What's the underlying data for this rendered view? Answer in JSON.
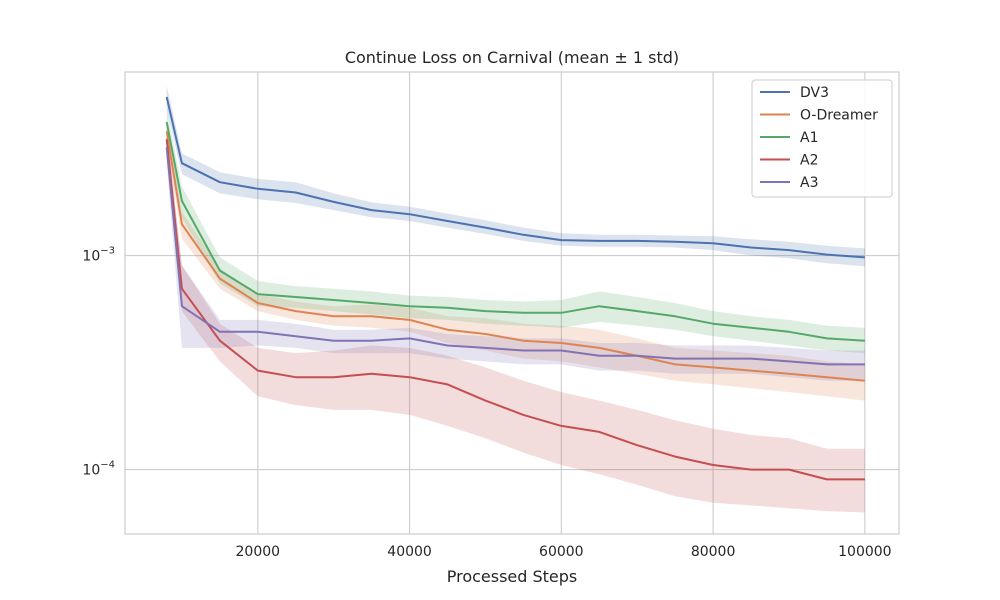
{
  "chart_data": {
    "type": "line",
    "title": "Continue Loss on Carnival (mean ± 1 std)",
    "xlabel": "Processed Steps",
    "ylabel": "",
    "xlim": [
      2500,
      104500
    ],
    "ylim": [
      5e-05,
      0.0072
    ],
    "yscale": "log",
    "grid": true,
    "legend_position": "top-right",
    "xticks": [
      20000,
      40000,
      60000,
      80000,
      100000
    ],
    "yticks": [
      {
        "value": 0.001,
        "base": "10",
        "exp": "−3"
      },
      {
        "value": 0.0001,
        "base": "10",
        "exp": "−4"
      }
    ],
    "x": [
      8000,
      10000,
      15000,
      20000,
      25000,
      30000,
      35000,
      40000,
      45000,
      50000,
      55000,
      60000,
      65000,
      70000,
      75000,
      80000,
      85000,
      90000,
      95000,
      100000
    ],
    "series": [
      {
        "name": "DV3",
        "color": "#4c72b0",
        "values": [
          0.0055,
          0.0027,
          0.0022,
          0.00205,
          0.00197,
          0.00178,
          0.00163,
          0.00156,
          0.00145,
          0.00135,
          0.00125,
          0.00118,
          0.00117,
          0.00117,
          0.00116,
          0.00114,
          0.00109,
          0.00106,
          0.00101,
          0.00098
        ],
        "lower": [
          0.0048,
          0.0024,
          0.00195,
          0.00183,
          0.00176,
          0.00163,
          0.00151,
          0.00145,
          0.00135,
          0.00126,
          0.00117,
          0.00111,
          0.0011,
          0.0011,
          0.00109,
          0.00106,
          0.001,
          0.00097,
          0.00092,
          0.00089
        ],
        "upper": [
          0.0062,
          0.003,
          0.00245,
          0.00228,
          0.0022,
          0.00195,
          0.00177,
          0.00169,
          0.00157,
          0.00146,
          0.00135,
          0.00127,
          0.00125,
          0.00125,
          0.00124,
          0.00123,
          0.00119,
          0.00116,
          0.00111,
          0.00108
        ]
      },
      {
        "name": "O-Dreamer",
        "color": "#dd8452",
        "values": [
          0.0038,
          0.0014,
          0.00078,
          0.0006,
          0.00055,
          0.00052,
          0.00052,
          0.0005,
          0.00045,
          0.00043,
          0.0004,
          0.00039,
          0.00037,
          0.00034,
          0.00031,
          0.0003,
          0.00029,
          0.00028,
          0.00027,
          0.00026
        ],
        "lower": [
          0.0033,
          0.0012,
          0.0007,
          0.00055,
          0.0005,
          0.00047,
          0.00046,
          0.00044,
          0.00039,
          0.00036,
          0.00033,
          0.00032,
          0.0003,
          0.00028,
          0.00026,
          0.00025,
          0.00024,
          0.00023,
          0.00022,
          0.00021
        ],
        "upper": [
          0.0043,
          0.0016,
          0.00087,
          0.00066,
          0.00061,
          0.00058,
          0.00059,
          0.00057,
          0.00052,
          0.00051,
          0.00048,
          0.00047,
          0.00045,
          0.00041,
          0.00037,
          0.00036,
          0.00035,
          0.00034,
          0.00032,
          0.00031
        ]
      },
      {
        "name": "A1",
        "color": "#55a868",
        "values": [
          0.0042,
          0.0018,
          0.00085,
          0.00066,
          0.00064,
          0.00062,
          0.0006,
          0.00058,
          0.00057,
          0.00055,
          0.00054,
          0.00054,
          0.00058,
          0.00055,
          0.00052,
          0.00048,
          0.00046,
          0.00044,
          0.00041,
          0.0004
        ],
        "lower": [
          0.0036,
          0.0015,
          0.00074,
          0.00058,
          0.00057,
          0.00055,
          0.00053,
          0.00051,
          0.0005,
          0.00048,
          0.00047,
          0.00046,
          0.00049,
          0.00047,
          0.00045,
          0.00042,
          0.0004,
          0.00038,
          0.00036,
          0.00035
        ],
        "upper": [
          0.0048,
          0.0021,
          0.00098,
          0.00076,
          0.00072,
          0.0007,
          0.00068,
          0.00065,
          0.00064,
          0.00062,
          0.00061,
          0.00062,
          0.00068,
          0.00064,
          0.0006,
          0.00055,
          0.00052,
          0.0005,
          0.00047,
          0.00046
        ]
      },
      {
        "name": "A2",
        "color": "#c44e52",
        "values": [
          0.0035,
          0.0007,
          0.0004,
          0.00029,
          0.00027,
          0.00027,
          0.00028,
          0.00027,
          0.00025,
          0.00021,
          0.00018,
          0.00016,
          0.00015,
          0.00013,
          0.000115,
          0.000105,
          0.0001,
          0.0001,
          9e-05,
          9e-05
        ],
        "lower": [
          0.0029,
          0.00055,
          0.00032,
          0.00022,
          0.0002,
          0.00019,
          0.00019,
          0.00018,
          0.00016,
          0.00014,
          0.00012,
          0.000105,
          9.5e-05,
          8.5e-05,
          7.5e-05,
          7e-05,
          6.8e-05,
          6.6e-05,
          6.4e-05,
          6.3e-05
        ],
        "upper": [
          0.0041,
          0.0009,
          0.00048,
          0.00037,
          0.00035,
          0.00036,
          0.00038,
          0.00037,
          0.00034,
          0.0003,
          0.00026,
          0.00023,
          0.00021,
          0.00019,
          0.00017,
          0.000155,
          0.000145,
          0.00014,
          0.000125,
          0.000125
        ]
      },
      {
        "name": "A3",
        "color": "#8172b3",
        "values": [
          0.0032,
          0.00058,
          0.00044,
          0.00044,
          0.00042,
          0.0004,
          0.0004,
          0.00041,
          0.00038,
          0.00037,
          0.00036,
          0.00036,
          0.00034,
          0.00034,
          0.00033,
          0.00033,
          0.00033,
          0.00032,
          0.00031,
          0.00031
        ],
        "lower": [
          0.0027,
          0.00037,
          0.00037,
          0.00038,
          0.00037,
          0.00035,
          0.00035,
          0.00035,
          0.00033,
          0.00032,
          0.00031,
          0.00031,
          0.00029,
          0.00029,
          0.00028,
          0.00028,
          0.00028,
          0.00027,
          0.00026,
          0.00026
        ],
        "upper": [
          0.0037,
          0.0009,
          0.0005,
          0.0005,
          0.00048,
          0.00045,
          0.00045,
          0.00046,
          0.00043,
          0.00042,
          0.00041,
          0.00041,
          0.00039,
          0.00039,
          0.00038,
          0.00038,
          0.00038,
          0.00037,
          0.00036,
          0.00036
        ]
      }
    ]
  }
}
